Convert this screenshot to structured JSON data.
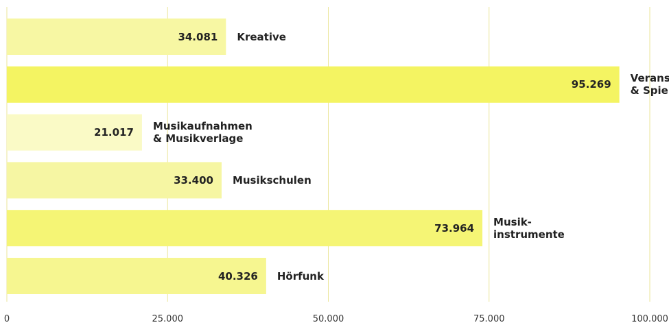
{
  "chart_data": {
    "type": "bar",
    "orientation": "horizontal",
    "categories": [
      "Kreative",
      "Veranstaltungen\n& Spielstätten",
      "Musikaufnahmen\n& Musikverlage",
      "Musikschulen",
      "Musik-\ninstrumente",
      "Hörfunk"
    ],
    "values": [
      34081,
      95269,
      21017,
      33400,
      73964,
      40326
    ],
    "value_labels": [
      "34.081",
      "95.269",
      "21.017",
      "33.400",
      "73.964",
      "40.326"
    ],
    "colors": [
      "#f7f7a3",
      "#f4f462",
      "#fafac6",
      "#f6f6a3",
      "#f5f575",
      "#f6f690"
    ],
    "xlim": [
      0,
      100000
    ],
    "xticks": [
      0,
      {
        "value": 25000,
        "label": "25.000"
      },
      {
        "value": 50000,
        "label": "50.000"
      },
      {
        "value": 75000,
        "label": "75.000"
      },
      {
        "value": 100000,
        "label": "100.000"
      }
    ],
    "grid": true
  }
}
